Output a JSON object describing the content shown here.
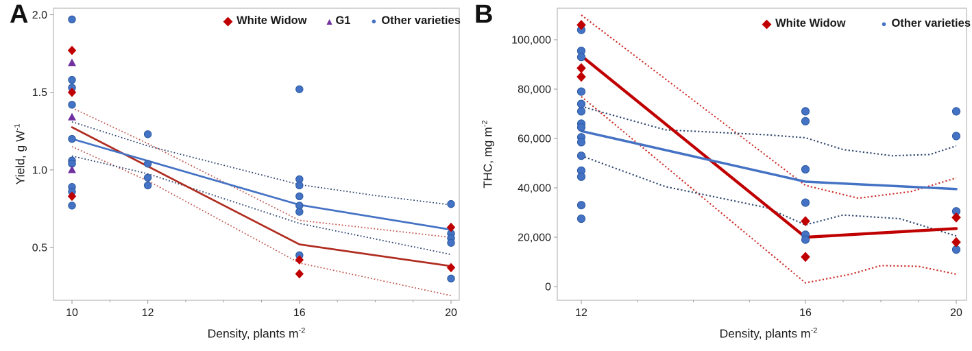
{
  "colors": {
    "marker_red": "#c00000",
    "marker_blue": "#4472c4",
    "marker_blue_stroke": "#2c5aa0",
    "marker_purple": "#7030a0",
    "trend_red_a": "#b02c20",
    "trend_red_b": "#c00000",
    "trend_blue": "#4472c4",
    "ci_red_a": "#c05a52",
    "ci_red_b": "#cc2b26",
    "ci_blue": "#2e4670",
    "frame": "#bdbdbd",
    "tick": "#9a9a9a",
    "text": "#1f1f1f"
  },
  "chart_data": [
    {
      "type": "scatter",
      "panel_label": "A",
      "x_axis": {
        "title_main": "Density, plants m",
        "title_sup": "-2",
        "ticks": [
          {
            "v": 10,
            "label": "10"
          },
          {
            "v": 12,
            "label": "12"
          },
          {
            "v": 16,
            "label": "16"
          },
          {
            "v": 20,
            "label": "20"
          }
        ],
        "minor_v": [
          11,
          13,
          14,
          15,
          17,
          18,
          19
        ],
        "xlim": [
          9.5,
          20.25
        ]
      },
      "y_axis": {
        "title_main": "Yield, g W",
        "title_sup": "-1",
        "ticks": [
          {
            "v": 2.0,
            "label": "2.0"
          },
          {
            "v": 1.5,
            "label": "1.5"
          },
          {
            "v": 1.0,
            "label": "1.0"
          },
          {
            "v": 0.5,
            "label": "0.5"
          }
        ],
        "ylim": [
          0.16,
          2.05
        ]
      },
      "legend": [
        {
          "label": "White Widow",
          "marker": "diamond",
          "color": "marker_red"
        },
        {
          "label": "G1",
          "marker": "triangle",
          "color": "marker_purple"
        },
        {
          "label": "Other varieties",
          "marker": "circle",
          "color": "marker_blue"
        }
      ],
      "series": [
        {
          "name": "White Widow",
          "marker": "diamond",
          "color": "marker_red",
          "points": [
            [
              10,
              1.77
            ],
            [
              10,
              1.5
            ],
            [
              10,
              0.83
            ],
            [
              16,
              0.42
            ],
            [
              16,
              0.33
            ],
            [
              20,
              0.63
            ],
            [
              20,
              0.37
            ]
          ]
        },
        {
          "name": "G1",
          "marker": "triangle",
          "color": "marker_purple",
          "points": [
            [
              10,
              1.69
            ],
            [
              10,
              1.34
            ],
            [
              10,
              1.0
            ]
          ]
        },
        {
          "name": "Other varieties",
          "marker": "circle",
          "color": "marker_blue",
          "points": [
            [
              10,
              1.97
            ],
            [
              10,
              1.58
            ],
            [
              10,
              1.53
            ],
            [
              10,
              1.42
            ],
            [
              10,
              1.2
            ],
            [
              10,
              1.06
            ],
            [
              10,
              1.04
            ],
            [
              10,
              0.89
            ],
            [
              10,
              0.86
            ],
            [
              10,
              0.77
            ],
            [
              12,
              1.23
            ],
            [
              12,
              1.04
            ],
            [
              12,
              0.95
            ],
            [
              12,
              0.9
            ],
            [
              16,
              1.52
            ],
            [
              16,
              0.94
            ],
            [
              16,
              0.9
            ],
            [
              16,
              0.83
            ],
            [
              16,
              0.77
            ],
            [
              16,
              0.73
            ],
            [
              16,
              0.45
            ],
            [
              20,
              0.78
            ],
            [
              20,
              0.59
            ],
            [
              20,
              0.56
            ],
            [
              20,
              0.53
            ],
            [
              20,
              0.3
            ]
          ]
        }
      ],
      "trend_lines": [
        {
          "name": "white-widow-fit",
          "color": "trend_red_a",
          "points": [
            [
              10,
              1.275
            ],
            [
              16,
              0.52
            ],
            [
              20,
              0.38
            ]
          ]
        },
        {
          "name": "other-varieties-fit",
          "color": "trend_blue",
          "points": [
            [
              10,
              1.2
            ],
            [
              16,
              0.775
            ],
            [
              20,
              0.615
            ]
          ]
        }
      ],
      "ci_lines": [
        {
          "name": "white-widow-ci-upper",
          "color": "ci_red_a",
          "points": [
            [
              10,
              1.4
            ],
            [
              12,
              1.17
            ],
            [
              16,
              0.675
            ],
            [
              18,
              0.62
            ],
            [
              20,
              0.565
            ]
          ]
        },
        {
          "name": "white-widow-ci-lower",
          "color": "ci_red_a",
          "points": [
            [
              10,
              1.15
            ],
            [
              12,
              0.93
            ],
            [
              16,
              0.4
            ],
            [
              18,
              0.295
            ],
            [
              20,
              0.19
            ]
          ]
        },
        {
          "name": "other-ci-upper",
          "color": "ci_blue",
          "points": [
            [
              10,
              1.31
            ],
            [
              12,
              1.155
            ],
            [
              16,
              0.905
            ],
            [
              18,
              0.835
            ],
            [
              20,
              0.775
            ]
          ]
        },
        {
          "name": "other-ci-lower",
          "color": "ci_blue",
          "points": [
            [
              10,
              1.09
            ],
            [
              12,
              0.975
            ],
            [
              16,
              0.655
            ],
            [
              18,
              0.555
            ],
            [
              20,
              0.455
            ]
          ]
        }
      ]
    },
    {
      "type": "scatter",
      "panel_label": "B",
      "x_axis": {
        "title_main": "Density, plants m",
        "title_sup": "-2",
        "ticks": [
          {
            "v": 12,
            "label": "12"
          },
          {
            "v": 16,
            "label": "16"
          },
          {
            "v": 20,
            "label": "20"
          }
        ],
        "minor_v": [
          13,
          14,
          15,
          17,
          18,
          19
        ],
        "xlim": [
          11.5,
          20.3
        ]
      },
      "y_axis": {
        "title_main": "THC, mg m",
        "title_sup": "-2",
        "ticks": [
          {
            "v": 100000,
            "label": "100,000"
          },
          {
            "v": 80000,
            "label": "80,000"
          },
          {
            "v": 60000,
            "label": "60,000"
          },
          {
            "v": 40000,
            "label": "40,000"
          },
          {
            "v": 20000,
            "label": "20,000"
          },
          {
            "v": 0,
            "label": "0"
          }
        ],
        "ylim": [
          0,
          112000
        ]
      },
      "legend": [
        {
          "label": "White Widow",
          "marker": "diamond",
          "color": "marker_red"
        },
        {
          "label": "Other varieties",
          "marker": "circle",
          "color": "marker_blue"
        }
      ],
      "series": [
        {
          "name": "White Widow",
          "marker": "diamond",
          "color": "marker_red",
          "points": [
            [
              12,
              106000
            ],
            [
              12,
              88500
            ],
            [
              12,
              85000
            ],
            [
              16,
              26500
            ],
            [
              16,
              12000
            ],
            [
              20,
              28000
            ],
            [
              20,
              18000
            ]
          ]
        },
        {
          "name": "Other varieties",
          "marker": "circle",
          "color": "marker_blue",
          "points": [
            [
              12,
              104000
            ],
            [
              12,
              95500
            ],
            [
              12,
              93000
            ],
            [
              12,
              79000
            ],
            [
              12,
              74000
            ],
            [
              12,
              71000
            ],
            [
              12,
              66000
            ],
            [
              12,
              64500
            ],
            [
              12,
              60500
            ],
            [
              12,
              58500
            ],
            [
              12,
              53000
            ],
            [
              12,
              47000
            ],
            [
              12,
              44500
            ],
            [
              12,
              33000
            ],
            [
              12,
              27500
            ],
            [
              16,
              71000
            ],
            [
              16,
              67000
            ],
            [
              16,
              47500
            ],
            [
              16,
              34000
            ],
            [
              16,
              21000
            ],
            [
              16,
              19000
            ],
            [
              20,
              71000
            ],
            [
              20,
              61000
            ],
            [
              20,
              30500
            ],
            [
              20,
              15000
            ]
          ]
        }
      ],
      "trend_lines": [
        {
          "name": "white-widow-fit",
          "color": "trend_red_b",
          "points": [
            [
              12,
              93500
            ],
            [
              16,
              20000
            ],
            [
              20,
              23500
            ]
          ]
        },
        {
          "name": "other-varieties-fit",
          "color": "trend_blue",
          "points": [
            [
              12,
              63000
            ],
            [
              16,
              42500
            ],
            [
              20,
              39500
            ]
          ]
        }
      ],
      "ci_lines": [
        {
          "name": "white-widow-ci-upper",
          "color": "ci_red_b",
          "points": [
            [
              12,
              110000
            ],
            [
              16,
              41000
            ],
            [
              17.4,
              35800
            ],
            [
              18.8,
              38500
            ],
            [
              20,
              44000
            ]
          ]
        },
        {
          "name": "white-widow-ci-lower",
          "color": "ci_red_b",
          "points": [
            [
              12,
              77000
            ],
            [
              16,
              1500
            ],
            [
              17.2,
              5000
            ],
            [
              18,
              8500
            ],
            [
              19,
              8200
            ],
            [
              20,
              5000
            ]
          ]
        },
        {
          "name": "other-ci-upper",
          "color": "ci_blue",
          "points": [
            [
              12,
              73000
            ],
            [
              13.5,
              63500
            ],
            [
              15.3,
              61500
            ],
            [
              16,
              60300
            ],
            [
              17,
              55500
            ],
            [
              18.3,
              53000
            ],
            [
              19.3,
              53500
            ],
            [
              20,
              57000
            ]
          ]
        },
        {
          "name": "other-ci-lower",
          "color": "ci_blue",
          "points": [
            [
              12,
              53000
            ],
            [
              13.5,
              40500
            ],
            [
              15.3,
              32000
            ],
            [
              16,
              25000
            ],
            [
              17,
              29000
            ],
            [
              18.5,
              27500
            ],
            [
              20,
              20500
            ]
          ]
        }
      ]
    }
  ]
}
